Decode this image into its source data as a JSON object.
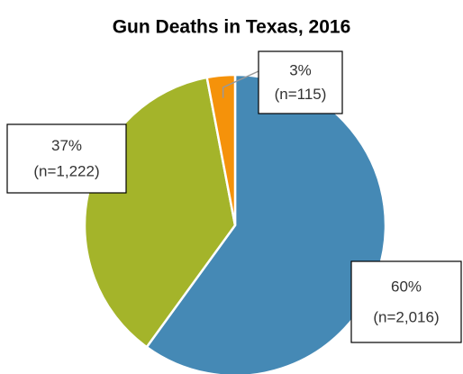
{
  "chart_data": {
    "type": "pie",
    "title": "Gun Deaths in Texas, 2016",
    "values": [
      60,
      37,
      3
    ],
    "value_labels": [
      "60%",
      "37%",
      "3%"
    ],
    "counts": [
      2016,
      1222,
      115
    ],
    "count_labels": [
      "(n=2,016)",
      "(n=1,222)",
      "(n=115)"
    ],
    "colors": [
      "#4589b5",
      "#a4b42a",
      "#f5920a"
    ]
  }
}
